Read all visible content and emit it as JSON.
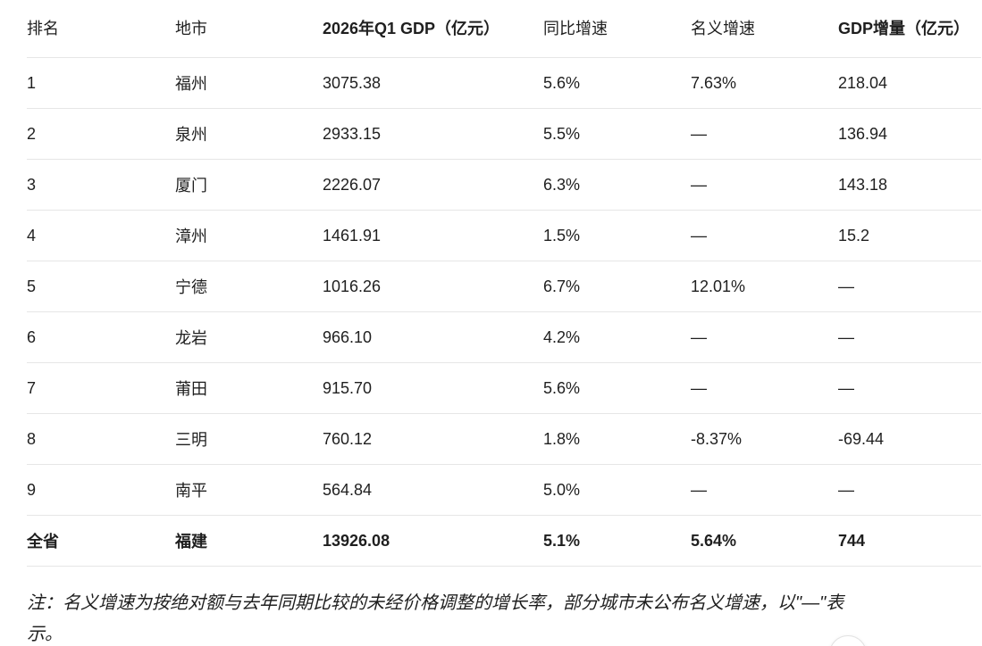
{
  "table": {
    "headers": [
      "排名",
      "地市",
      "2026年Q1 GDP（亿元）",
      "同比增速",
      "名义增速",
      "GDP增量（亿元）"
    ],
    "rows": [
      [
        "1",
        "福州",
        "3075.38",
        "5.6%",
        "7.63%",
        "218.04"
      ],
      [
        "2",
        "泉州",
        "2933.15",
        "5.5%",
        "—",
        "136.94"
      ],
      [
        "3",
        "厦门",
        "2226.07",
        "6.3%",
        "—",
        "143.18"
      ],
      [
        "4",
        "漳州",
        "1461.91",
        "1.5%",
        "—",
        "15.2"
      ],
      [
        "5",
        "宁德",
        "1016.26",
        "6.7%",
        "12.01%",
        "—"
      ],
      [
        "6",
        "龙岩",
        "966.10",
        "4.2%",
        "—",
        "—"
      ],
      [
        "7",
        "莆田",
        "915.70",
        "5.6%",
        "—",
        "—"
      ],
      [
        "8",
        "三明",
        "760.12",
        "1.8%",
        "-8.37%",
        "-69.44"
      ],
      [
        "9",
        "南平",
        "564.84",
        "5.0%",
        "—",
        "—"
      ]
    ],
    "total": [
      "全省",
      "福建",
      "13926.08",
      "5.1%",
      "5.64%",
      "744"
    ]
  },
  "note": "注：名义增速为按绝对额与去年同期比较的未经价格调整的增长率，部分城市未公布名义增速，以\"—\"表示。"
}
